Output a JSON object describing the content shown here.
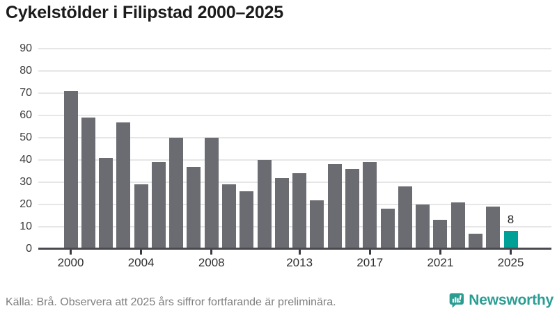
{
  "title": "Cykelstölder i Filipstad 2000–2025",
  "footer": {
    "source_note": "Källa: Brå. Observera att 2025 års siffror fortfarande är preliminära.",
    "brand_name": "Newsworthy"
  },
  "colors": {
    "bar": "#6b6c72",
    "highlight": "#00a096",
    "grid": "#e6e6e6",
    "axis": "#494950",
    "tick": "#3a3a40",
    "brand_teal": "#2a9d93"
  },
  "icons": {
    "brand_logo": "bar-chart-speech-bubble-icon"
  },
  "chart_data": {
    "type": "bar",
    "title": "Cykelstölder i Filipstad 2000–2025",
    "x": [
      2000,
      2001,
      2002,
      2003,
      2004,
      2005,
      2006,
      2007,
      2008,
      2009,
      2010,
      2011,
      2012,
      2013,
      2014,
      2015,
      2016,
      2017,
      2018,
      2019,
      2020,
      2021,
      2022,
      2023,
      2024,
      2025
    ],
    "values": [
      71,
      59,
      41,
      57,
      29,
      39,
      50,
      37,
      50,
      29,
      26,
      40,
      32,
      34,
      22,
      38,
      36,
      39,
      18,
      28,
      20,
      13,
      21,
      7,
      19,
      8
    ],
    "ylim": [
      0,
      90
    ],
    "yticks": [
      0,
      10,
      20,
      30,
      40,
      50,
      60,
      70,
      80,
      90
    ],
    "xticks": [
      2000,
      2004,
      2008,
      2013,
      2017,
      2021,
      2025
    ],
    "grid": true,
    "legend": "none",
    "highlight": {
      "x": 2025,
      "value": 8,
      "label": "8"
    }
  }
}
